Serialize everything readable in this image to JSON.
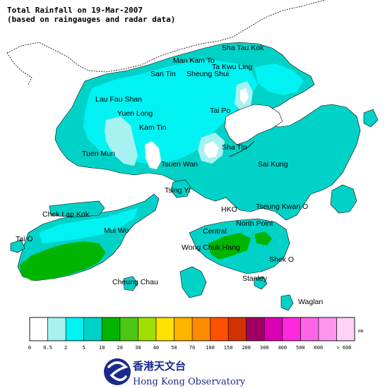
{
  "title": {
    "line1": "Total Rainfall on 19-Mar-2007",
    "line2": "(based on raingauges and radar data)"
  },
  "places": [
    "Sha Tau Kok",
    "Man Kam To",
    "Ta Kwu Ling",
    "San Tin",
    "Sheung Shui",
    "Lau Fau Shan",
    "Yuen Long",
    "Tai Po",
    "Kam Tin",
    "Tuen Mun",
    "Sha Tin",
    "Tsuen Wan",
    "Sai Kung",
    "Tsing Yi",
    "HKO",
    "Tseung Kwan O",
    "Chek Lap Kok",
    "North Point",
    "Central",
    "Mui Wo",
    "Tai O",
    "Wong Chuk Hang",
    "Shek O",
    "Cheung Chau",
    "Stanley",
    "Waglan"
  ],
  "legend": {
    "unit": "mm",
    "colors": [
      "#ffffff",
      "#a6f2f2",
      "#00f2f2",
      "#00d2c8",
      "#00b400",
      "#4cc814",
      "#a0e000",
      "#ffe000",
      "#ffb400",
      "#ff8c00",
      "#ff5000",
      "#d23200",
      "#a00064",
      "#dc00b4",
      "#ff28dc",
      "#ff64e6",
      "#ff96ee",
      "#ffd2f8"
    ],
    "ticks": [
      "0",
      "0.5",
      "2",
      "5",
      "10",
      "20",
      "30",
      "40",
      "50",
      "70",
      "100",
      "150",
      "200",
      "300",
      "400",
      "500",
      "600",
      "> 600"
    ]
  },
  "logo": {
    "chinese": "香港天文台",
    "english": "Hong Kong Observatory"
  },
  "colors": {
    "land_base": "#00d2c8",
    "rain_light": "#00f2f2",
    "rain_lightest": "#a6f2f2",
    "rain_heavy": "#00b400",
    "mainland": "#ffffff",
    "sea": "#ffffff",
    "logo_blue": "#1a2a8c"
  }
}
